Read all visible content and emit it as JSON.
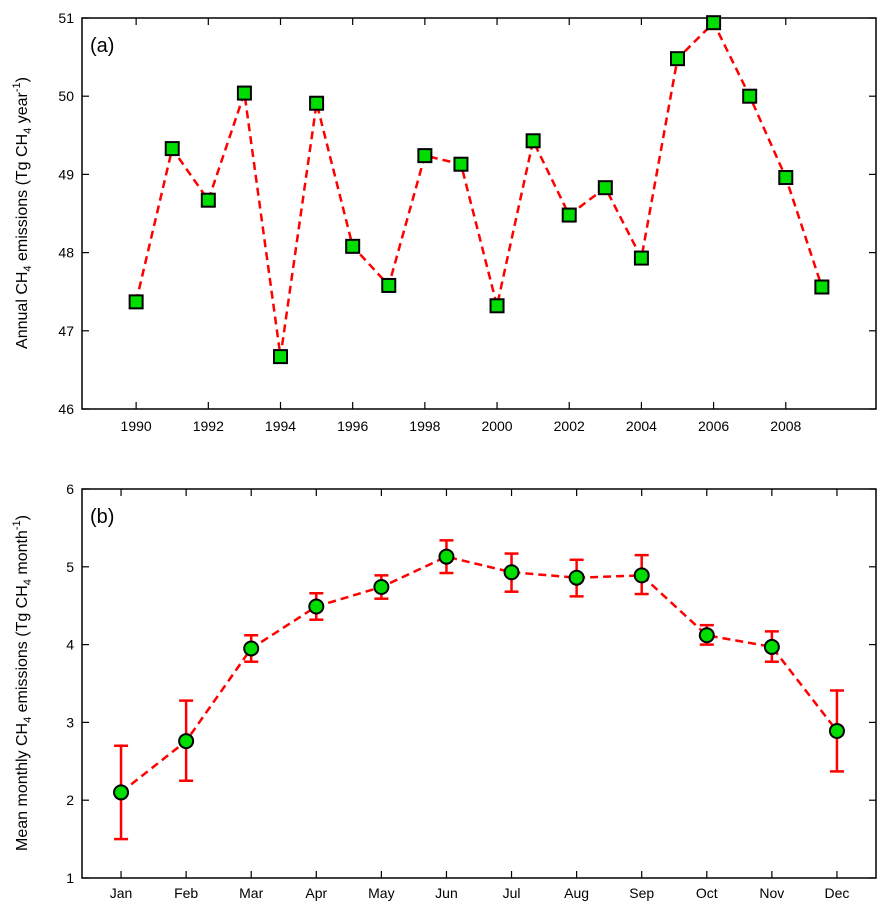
{
  "chart_data": [
    {
      "type": "line",
      "panel_label": "(a)",
      "ylabel": {
        "pre": "Annual CH",
        "sub1": "4",
        "mid": " emissions (Tg CH",
        "sub2": "4",
        "post": " year",
        "sup": "-1",
        "end": ")"
      },
      "x": [
        1990,
        1991,
        1992,
        1993,
        1994,
        1995,
        1996,
        1997,
        1998,
        1999,
        2000,
        2001,
        2002,
        2003,
        2004,
        2005,
        2006,
        2007,
        2008,
        2009
      ],
      "values": [
        47.37,
        49.33,
        48.67,
        50.04,
        46.67,
        49.91,
        48.08,
        47.58,
        49.24,
        49.13,
        47.32,
        49.43,
        48.48,
        48.83,
        47.93,
        50.48,
        50.94,
        50.0,
        48.96,
        47.56
      ],
      "xlim": [
        1988.5,
        2010.5
      ],
      "ylim": [
        46,
        51
      ],
      "xticks": [
        "1990",
        "1992",
        "1994",
        "1996",
        "1998",
        "2000",
        "2002",
        "2004",
        "2006",
        "2008"
      ],
      "yticks": [
        "46",
        "47",
        "48",
        "49",
        "50",
        "51"
      ],
      "marker": "square",
      "line_color": "#ff0000",
      "marker_fill": "#00dd00",
      "marker_edge": "#000000"
    },
    {
      "type": "line",
      "panel_label": "(b)",
      "ylabel": {
        "pre": "Mean monthly CH",
        "sub1": "4",
        "mid": " emissions (Tg CH",
        "sub2": "4",
        "post": " month",
        "sup": "-1",
        "end": ")"
      },
      "categories": [
        "Jan",
        "Feb",
        "Mar",
        "Apr",
        "May",
        "Jun",
        "Jul",
        "Aug",
        "Sep",
        "Oct",
        "Nov",
        "Dec"
      ],
      "values": [
        2.1,
        2.76,
        3.95,
        4.49,
        4.74,
        5.13,
        4.93,
        4.86,
        4.89,
        4.12,
        3.97,
        2.89
      ],
      "error_low": [
        1.5,
        2.25,
        3.78,
        4.32,
        4.59,
        4.92,
        4.68,
        4.62,
        4.65,
        4.0,
        3.78,
        2.37
      ],
      "error_high": [
        2.7,
        3.28,
        4.12,
        4.66,
        4.89,
        5.34,
        5.17,
        5.09,
        5.15,
        4.25,
        4.17,
        3.41
      ],
      "ylim": [
        1,
        6
      ],
      "yticks": [
        "1",
        "2",
        "3",
        "4",
        "5",
        "6"
      ],
      "marker": "circle",
      "line_color": "#ff0000",
      "errorbar_color": "#ff0000",
      "marker_fill": "#00dd00",
      "marker_edge": "#000000"
    }
  ]
}
